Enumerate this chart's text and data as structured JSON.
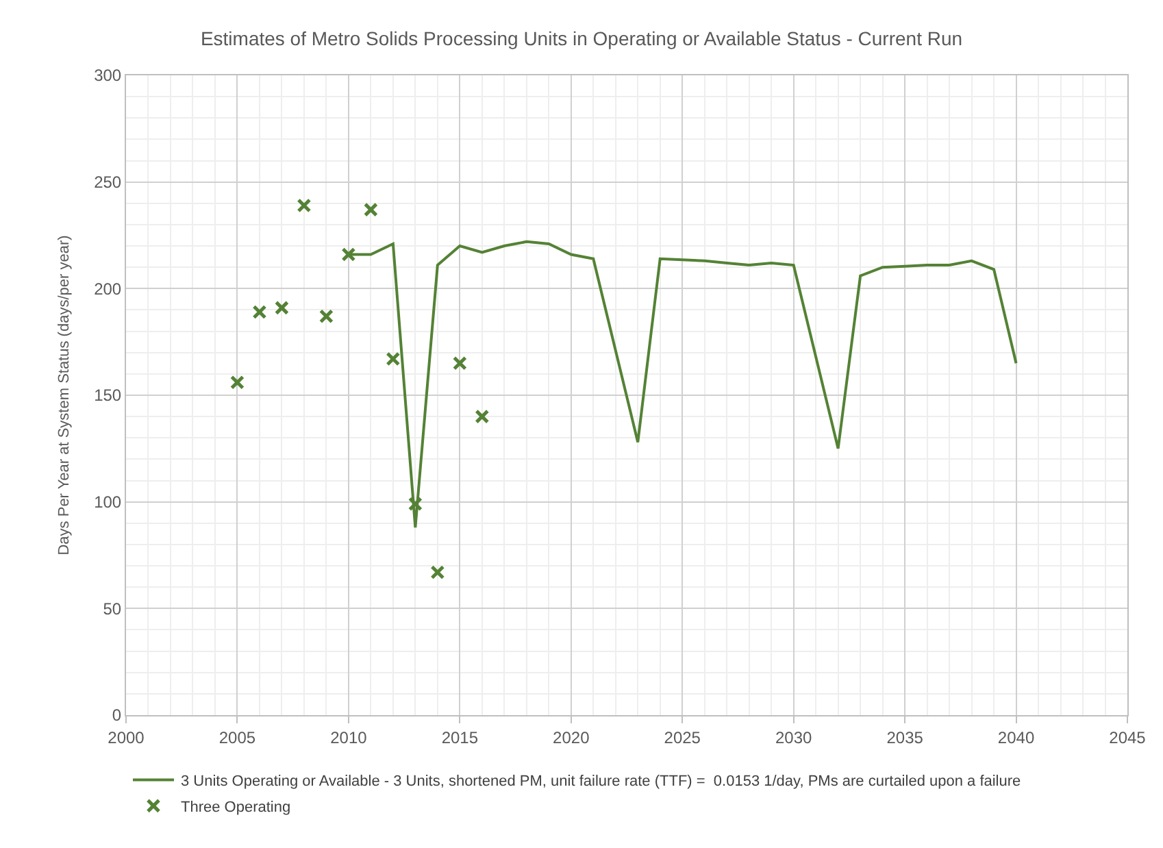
{
  "chart_data": {
    "type": "line",
    "title": "Estimates of Metro Solids Processing Units in Operating or Available Status - Current Run",
    "ylabel": "Days Per Year at System Status (days/per year)",
    "xlim": [
      2000,
      2045
    ],
    "xticks": [
      2000,
      2005,
      2010,
      2015,
      2020,
      2025,
      2030,
      2035,
      2040,
      2045
    ],
    "ylim": [
      0,
      300
    ],
    "yticks": [
      0,
      50,
      100,
      150,
      200,
      250,
      300
    ],
    "grid": true,
    "legend": "bottom",
    "series": [
      {
        "name": "3 Units Operating or Available - 3 Units, shortened PM, unit failure rate (TTF) =  0.0153 1/day, PMs are curtailed upon a failure",
        "color": "#548235",
        "marker": "none",
        "x": [
          2010,
          2011,
          2012,
          2013,
          2014,
          2015,
          2016,
          2017,
          2018,
          2019,
          2020,
          2021,
          2023,
          2024,
          2025,
          2026,
          2027,
          2028,
          2029,
          2030,
          2032,
          2033,
          2034,
          2035,
          2036,
          2037,
          2038,
          2039,
          2040
        ],
        "values": [
          216,
          216,
          221,
          88,
          211,
          220,
          217,
          220,
          222,
          221,
          216,
          214,
          128,
          214,
          213.5,
          213,
          212,
          211,
          212,
          211,
          125,
          206,
          210,
          210.5,
          211,
          211,
          213,
          209,
          165
        ]
      },
      {
        "name": "Three Operating",
        "type": "scatter",
        "color": "#548235",
        "marker": "cross",
        "x": [
          2005,
          2006,
          2007,
          2008,
          2009,
          2010,
          2011,
          2012,
          2013,
          2014,
          2015,
          2016
        ],
        "values": [
          156,
          189,
          191,
          239,
          187,
          216,
          237,
          167,
          99,
          67,
          165,
          140
        ]
      }
    ]
  }
}
